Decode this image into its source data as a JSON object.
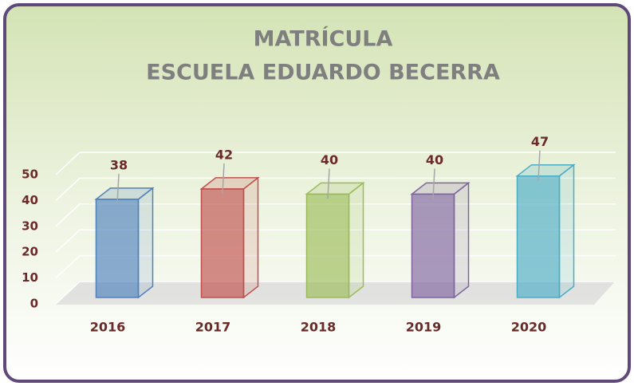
{
  "chart_data": {
    "type": "bar3d",
    "title": [
      "MATRÍCULA",
      "ESCUELA EDUARDO BECERRA"
    ],
    "categories": [
      "2016",
      "2017",
      "2018",
      "2019",
      "2020"
    ],
    "values": [
      38,
      42,
      40,
      40,
      47
    ],
    "colors": [
      "#4f81bd",
      "#c0504d",
      "#9bbb59",
      "#8064a2",
      "#4bacc6"
    ],
    "ylim": [
      0,
      50
    ],
    "yticks": [
      0,
      10,
      20,
      30,
      40,
      50
    ],
    "grid": true
  }
}
